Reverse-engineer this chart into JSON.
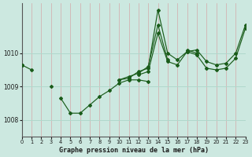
{
  "title": "Graphe pression niveau de la mer (hPa)",
  "bg_color": "#cce8e0",
  "line_color": "#1a5c1a",
  "grid_color": "#b0d8cc",
  "red_grid_color": "#d4a8a8",
  "xmin": 0,
  "xmax": 23,
  "ymin": 1007.5,
  "ymax": 1011.5,
  "yticks": [
    1008,
    1009,
    1010
  ],
  "xticks": [
    0,
    1,
    2,
    3,
    4,
    5,
    6,
    7,
    8,
    9,
    10,
    11,
    12,
    13,
    14,
    15,
    16,
    17,
    18,
    19,
    20,
    21,
    22,
    23
  ],
  "series": [
    [
      1009.65,
      1009.5,
      null,
      null,
      null,
      null,
      null,
      null,
      null,
      null,
      1009.2,
      1009.25,
      1009.45,
      1009.55,
      1011.3,
      1010.0,
      1009.8,
      1010.05,
      1010.1,
      1009.75,
      1009.65,
      1009.7,
      1010.0,
      1010.85
    ],
    [
      1009.65,
      null,
      null,
      1009.0,
      null,
      null,
      null,
      null,
      null,
      null,
      1009.2,
      1009.3,
      1009.4,
      1009.6,
      1010.85,
      1009.8,
      null,
      1010.1,
      1010.0,
      null,
      null,
      null,
      null,
      null
    ],
    [
      1009.65,
      null,
      null,
      null,
      1008.65,
      1008.2,
      1008.2,
      1008.45,
      1008.7,
      1008.88,
      1009.1,
      1009.2,
      1009.2,
      1009.15,
      null,
      null,
      null,
      null,
      null,
      null,
      null,
      null,
      null,
      null
    ],
    [
      1009.65,
      null,
      null,
      null,
      null,
      null,
      null,
      null,
      null,
      null,
      null,
      null,
      1009.35,
      1009.45,
      1010.6,
      1009.75,
      1009.65,
      1010.05,
      1009.95,
      1009.55,
      1009.5,
      1009.55,
      1009.85,
      1010.75
    ]
  ]
}
